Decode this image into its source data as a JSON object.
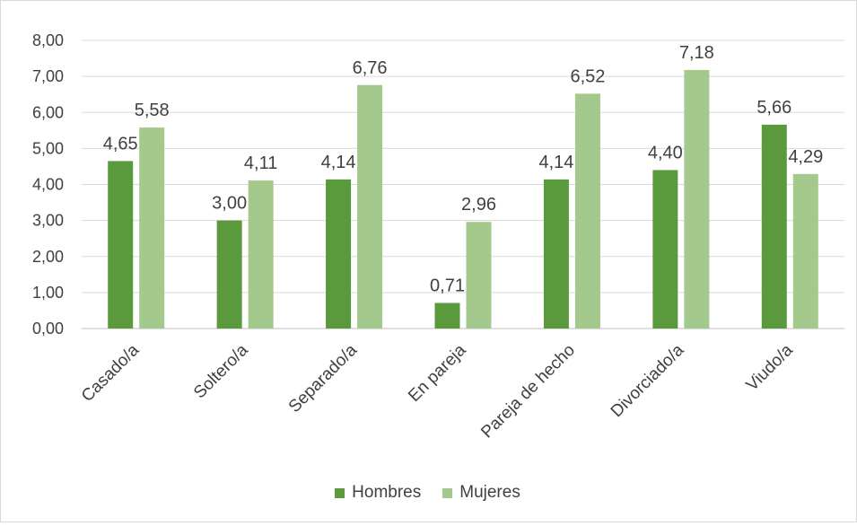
{
  "chart_data": {
    "type": "bar",
    "categories": [
      "Casado/a",
      "Soltero/a",
      "Separado/a",
      "En pareja",
      "Pareja de hecho",
      "Divorciado/a",
      "Viudo/a"
    ],
    "series": [
      {
        "name": "Hombres",
        "color": "#5b9a3c",
        "values": [
          4.65,
          3.0,
          4.14,
          0.71,
          4.14,
          4.4,
          5.66
        ],
        "labels": [
          "4,65",
          "3,00",
          "4,14",
          "0,71",
          "4,14",
          "4,40",
          "5,66"
        ]
      },
      {
        "name": "Mujeres",
        "color": "#a3c98c",
        "values": [
          5.58,
          4.11,
          6.76,
          2.96,
          6.52,
          7.18,
          4.29
        ],
        "labels": [
          "5,58",
          "4,11",
          "6,76",
          "2,96",
          "6,52",
          "7,18",
          "4,29"
        ]
      }
    ],
    "ylim": [
      0,
      8
    ],
    "yticks": [
      "0,00",
      "1,00",
      "2,00",
      "3,00",
      "4,00",
      "5,00",
      "6,00",
      "7,00",
      "8,00"
    ],
    "grid": true,
    "legend_position": "bottom"
  }
}
